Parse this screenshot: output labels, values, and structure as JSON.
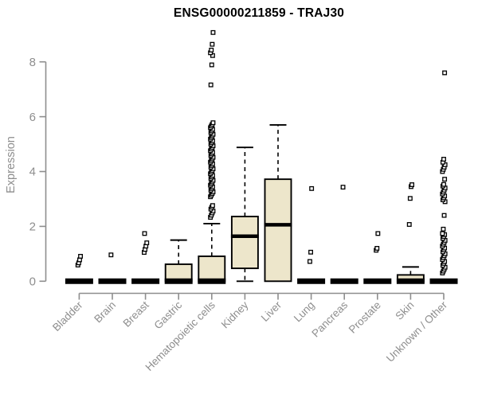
{
  "chart_data": {
    "type": "boxplot",
    "title": "ENSG00000211859 - TRAJ30",
    "ylabel": "Expression",
    "xlabel": "",
    "ylim": [
      0,
      9.3
    ],
    "yticks": [
      0,
      2,
      4,
      6,
      8
    ],
    "grid": false,
    "legend": "none",
    "axis_color": "#8e8e8e",
    "box_fill_color": "#ede6cb",
    "box_line_color": "#000000",
    "categories": [
      "Bladder",
      "Brain",
      "Breast",
      "Gastric",
      "Hematopoietic cells",
      "Kidney",
      "Liver",
      "Lung",
      "Pancreas",
      "Prostate",
      "Skin",
      "Unknown / Other"
    ],
    "boxes": [
      {
        "category": "Bladder",
        "q1": 0,
        "median": 0,
        "q3": 0,
        "whisker_low": 0,
        "whisker_high": 0,
        "outliers": [
          0.59,
          0.67,
          0.78,
          0.91
        ]
      },
      {
        "category": "Brain",
        "q1": 0,
        "median": 0,
        "q3": 0,
        "whisker_low": 0,
        "whisker_high": 0,
        "outliers": [
          0.96
        ]
      },
      {
        "category": "Breast",
        "q1": 0,
        "median": 0,
        "q3": 0,
        "whisker_low": 0,
        "whisker_high": 0,
        "outliers": [
          1.05,
          1.16,
          1.28,
          1.4,
          1.74
        ]
      },
      {
        "category": "Gastric",
        "q1": 0,
        "median": 0,
        "q3": 0.62,
        "whisker_low": 0,
        "whisker_high": 1.5,
        "outliers": []
      },
      {
        "category": "Hematopoietic cells",
        "q1": 0,
        "median": 0,
        "q3": 0.91,
        "whisker_low": 0,
        "whisker_high": 2.1,
        "outliers": [
          2.33,
          2.41,
          2.49,
          2.56,
          2.63,
          2.7,
          2.76,
          3.08,
          3.14,
          3.2,
          3.26,
          3.32,
          3.38,
          3.44,
          3.5,
          3.56,
          3.62,
          3.68,
          3.74,
          3.8,
          3.86,
          3.92,
          3.98,
          4.04,
          4.1,
          4.16,
          4.22,
          4.28,
          4.34,
          4.4,
          4.46,
          4.52,
          4.58,
          4.64,
          4.7,
          4.76,
          4.82,
          4.88,
          4.94,
          5.0,
          5.06,
          5.12,
          5.18,
          5.24,
          5.3,
          5.36,
          5.42,
          5.48,
          5.54,
          5.6,
          5.66,
          5.72,
          5.78,
          7.16,
          7.89,
          8.23,
          8.33,
          8.43,
          8.64,
          9.07
        ]
      },
      {
        "category": "Kidney",
        "q1": 0.47,
        "median": 1.64,
        "q3": 2.36,
        "whisker_low": 0,
        "whisker_high": 4.88,
        "outliers": []
      },
      {
        "category": "Liver",
        "q1": 0,
        "median": 2.06,
        "q3": 3.72,
        "whisker_low": 0,
        "whisker_high": 5.7,
        "outliers": []
      },
      {
        "category": "Lung",
        "q1": 0,
        "median": 0,
        "q3": 0,
        "whisker_low": 0,
        "whisker_high": 0,
        "outliers": [
          0.72,
          1.06,
          3.38
        ]
      },
      {
        "category": "Pancreas",
        "q1": 0,
        "median": 0,
        "q3": 0,
        "whisker_low": 0,
        "whisker_high": 0,
        "outliers": [
          3.43
        ]
      },
      {
        "category": "Prostate",
        "q1": 0,
        "median": 0,
        "q3": 0,
        "whisker_low": 0,
        "whisker_high": 0,
        "outliers": [
          1.13,
          1.2,
          1.74
        ]
      },
      {
        "category": "Skin",
        "q1": 0,
        "median": 0,
        "q3": 0.23,
        "whisker_low": 0,
        "whisker_high": 0.52,
        "outliers": [
          2.07,
          3.02,
          3.45,
          3.52
        ]
      },
      {
        "category": "Unknown / Other",
        "q1": 0,
        "median": 0,
        "q3": 0,
        "whisker_low": 0,
        "whisker_high": 0,
        "outliers": [
          0.3,
          0.37,
          0.44,
          0.51,
          0.58,
          0.65,
          0.72,
          0.79,
          0.86,
          0.93,
          1.0,
          1.07,
          1.14,
          1.21,
          1.28,
          1.35,
          1.42,
          1.49,
          1.56,
          1.63,
          1.7,
          1.74,
          1.9,
          2.4,
          2.9,
          2.97,
          3.04,
          3.11,
          3.18,
          3.25,
          3.32,
          3.4,
          3.47,
          3.53,
          3.72,
          4.0,
          4.08,
          4.16,
          4.25,
          4.34,
          4.45,
          7.6
        ]
      }
    ]
  }
}
